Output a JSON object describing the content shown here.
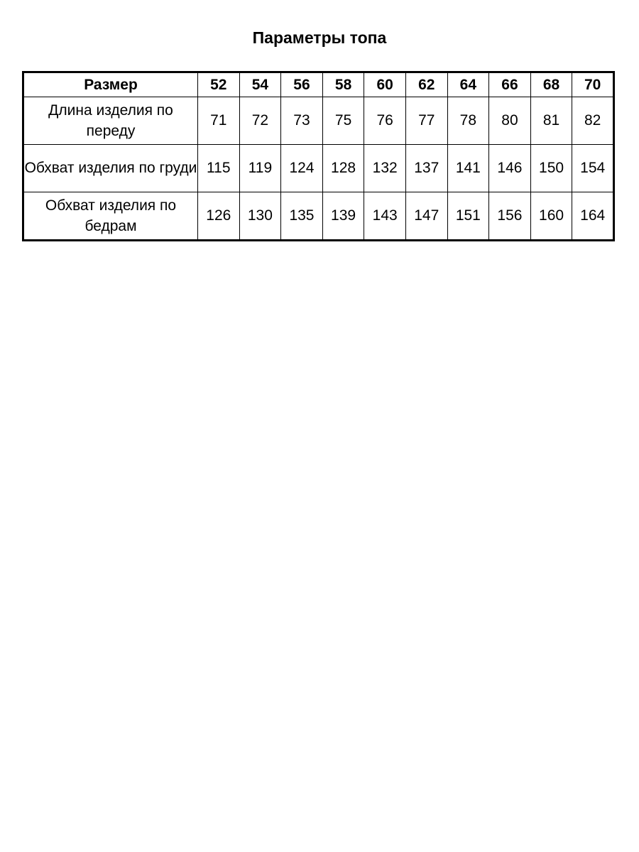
{
  "title": "Параметры топа",
  "table": {
    "header_label": "Размер",
    "sizes": [
      "52",
      "54",
      "56",
      "58",
      "60",
      "62",
      "64",
      "66",
      "68",
      "70"
    ],
    "rows": [
      {
        "label": "Длина изделия по переду",
        "values": [
          "71",
          "72",
          "73",
          "75",
          "76",
          "77",
          "78",
          "80",
          "81",
          "82"
        ]
      },
      {
        "label": "Обхват изделия по груди",
        "values": [
          "115",
          "119",
          "124",
          "128",
          "132",
          "137",
          "141",
          "146",
          "150",
          "154"
        ]
      },
      {
        "label": "Обхват изделия по бедрам",
        "values": [
          "126",
          "130",
          "135",
          "139",
          "143",
          "147",
          "151",
          "156",
          "160",
          "164"
        ]
      }
    ]
  }
}
